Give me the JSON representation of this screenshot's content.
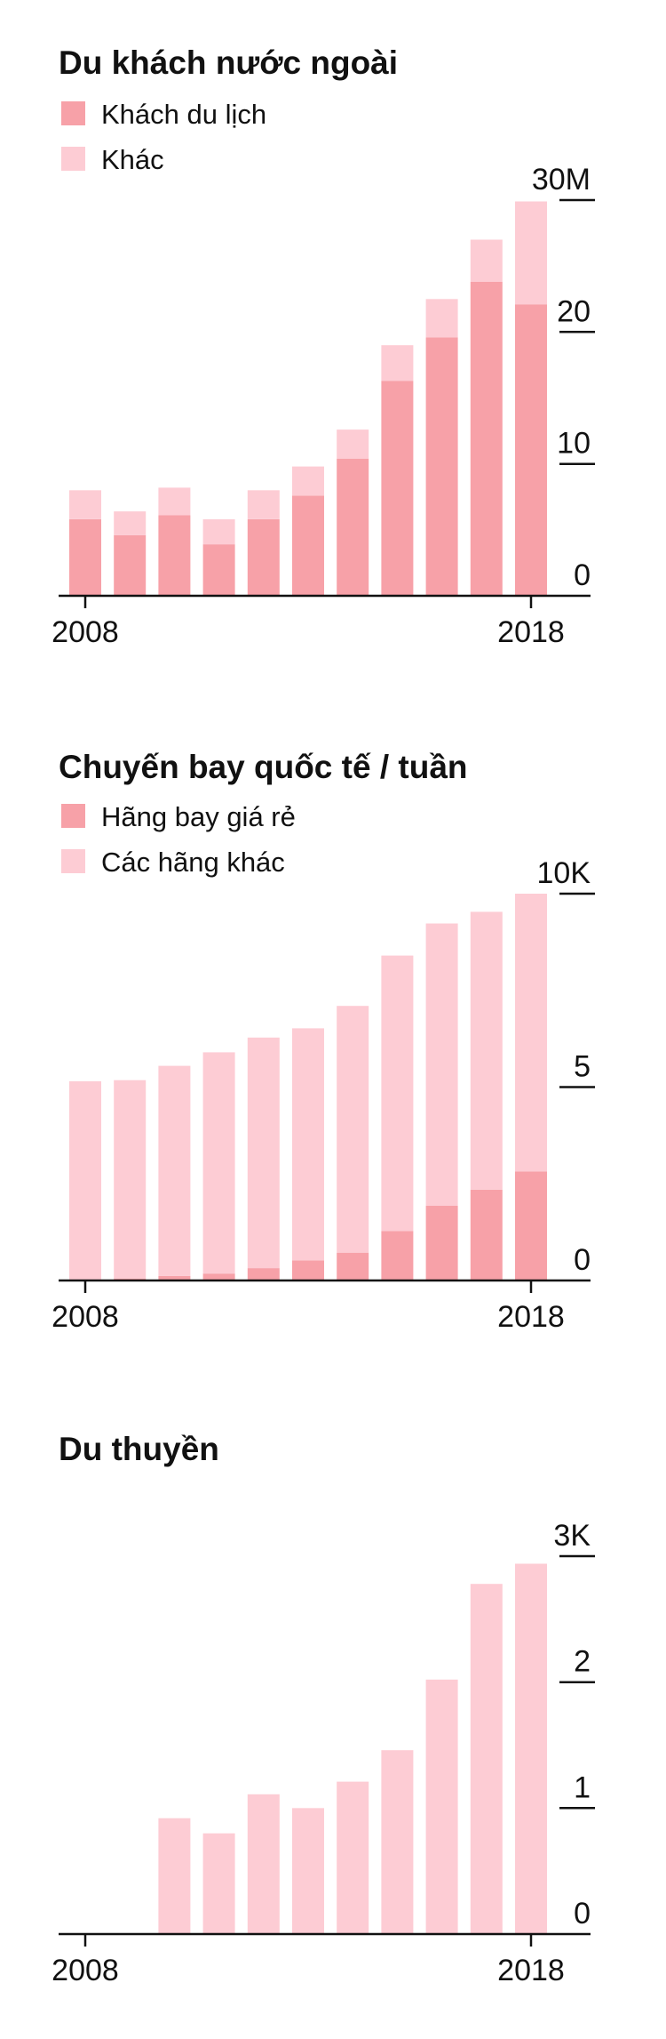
{
  "colors": {
    "primary": "#f7a1a8",
    "secondary": "#fdccd4",
    "axis": "#111111"
  },
  "chart_data": [
    {
      "type": "bar",
      "stacked": true,
      "title": "Du khách nước ngoài",
      "x": [
        2008,
        2009,
        2010,
        2011,
        2012,
        2013,
        2014,
        2015,
        2016,
        2017,
        2018
      ],
      "x_tick_labels": [
        "2008",
        "2018"
      ],
      "y_ticks": [
        "0",
        "10",
        "20",
        "30M"
      ],
      "ylim": [
        0,
        30
      ],
      "legend_position": "top-left",
      "series": [
        {
          "name": "Khách du lịch",
          "color": "#f7a1a8",
          "values": [
            5.8,
            4.6,
            6.1,
            3.9,
            5.8,
            7.6,
            10.4,
            16.3,
            19.6,
            23.8,
            22.1
          ]
        },
        {
          "name": "Khác",
          "color": "#fdccd4",
          "values": [
            2.2,
            1.8,
            2.1,
            1.9,
            2.2,
            2.2,
            2.2,
            2.7,
            2.9,
            3.2,
            7.8
          ]
        }
      ]
    },
    {
      "type": "bar",
      "stacked": true,
      "title": "Chuyến bay quốc tế / tuần",
      "x": [
        2008,
        2009,
        2010,
        2011,
        2012,
        2013,
        2014,
        2015,
        2016,
        2017,
        2018
      ],
      "x_tick_labels": [
        "2008",
        "2018"
      ],
      "y_ticks": [
        "0",
        "5",
        "10K"
      ],
      "ylim": [
        0,
        10
      ],
      "legend_position": "top-left",
      "series": [
        {
          "name": "Hãng bay giá rẻ",
          "color": "#f7a1a8",
          "values": [
            0.02,
            0.05,
            0.12,
            0.18,
            0.32,
            0.52,
            0.72,
            1.28,
            1.93,
            2.35,
            2.82
          ]
        },
        {
          "name": "Các hãng khác",
          "color": "#fdccd4",
          "values": [
            5.13,
            5.13,
            5.43,
            5.72,
            5.96,
            6.0,
            6.38,
            7.12,
            7.3,
            7.18,
            7.18
          ]
        }
      ]
    },
    {
      "type": "bar",
      "title": "Du thuyền",
      "x": [
        2008,
        2009,
        2010,
        2011,
        2012,
        2013,
        2014,
        2015,
        2016,
        2017,
        2018
      ],
      "x_tick_labels": [
        "2008",
        "2018"
      ],
      "y_ticks": [
        "0",
        "1",
        "2",
        "3K"
      ],
      "ylim": [
        0,
        3
      ],
      "series": [
        {
          "color": "#fdccd4",
          "values": [
            0,
            0,
            0.92,
            0.8,
            1.11,
            1.0,
            1.21,
            1.46,
            2.02,
            2.78,
            2.94
          ]
        }
      ]
    }
  ]
}
